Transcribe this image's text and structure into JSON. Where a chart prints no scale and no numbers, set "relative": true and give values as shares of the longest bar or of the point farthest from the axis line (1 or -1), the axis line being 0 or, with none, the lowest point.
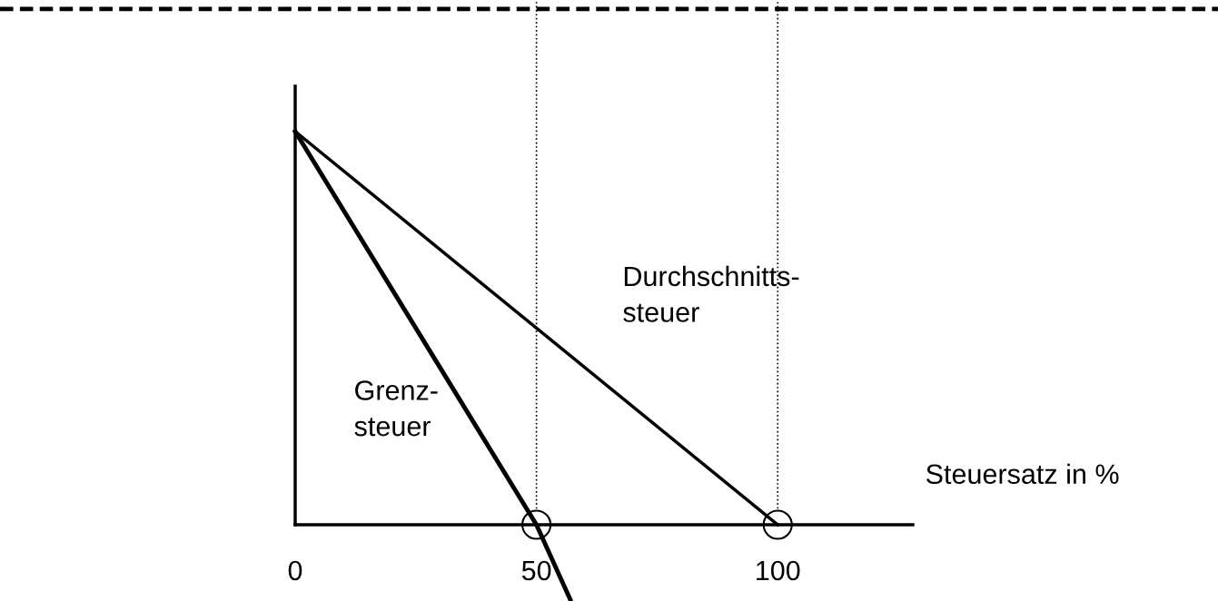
{
  "chart_data": {
    "type": "line",
    "relative": true,
    "xlabel": "Steuersatz in %",
    "xlim": [
      0,
      128
    ],
    "xticks": [
      0,
      50,
      100
    ],
    "grid": false,
    "legend": false,
    "series": [
      {
        "x": [
          0,
          100
        ],
        "values": [
          1,
          0
        ],
        "color": "#000000",
        "line_style": "solid",
        "marker": "none"
      },
      {
        "x": [
          0,
          50,
          57
        ],
        "values": [
          1,
          0,
          -0.19
        ],
        "color": "#000000",
        "line_style": "solid",
        "marker": "none"
      },
      {
        "type": "scatter",
        "x": [
          50,
          100
        ],
        "values": [
          0,
          0
        ],
        "color": "#ffffff",
        "marker": "circle"
      }
    ],
    "ref_lines": [
      {
        "axis": "x",
        "value": 50,
        "color": "#000000",
        "line_style": "dotted"
      },
      {
        "axis": "x",
        "value": 100,
        "color": "#000000",
        "line_style": "dotted"
      }
    ],
    "annotations": [
      "Durchschnitts-\nsteuer",
      "Grenz-\nsteuer"
    ]
  }
}
